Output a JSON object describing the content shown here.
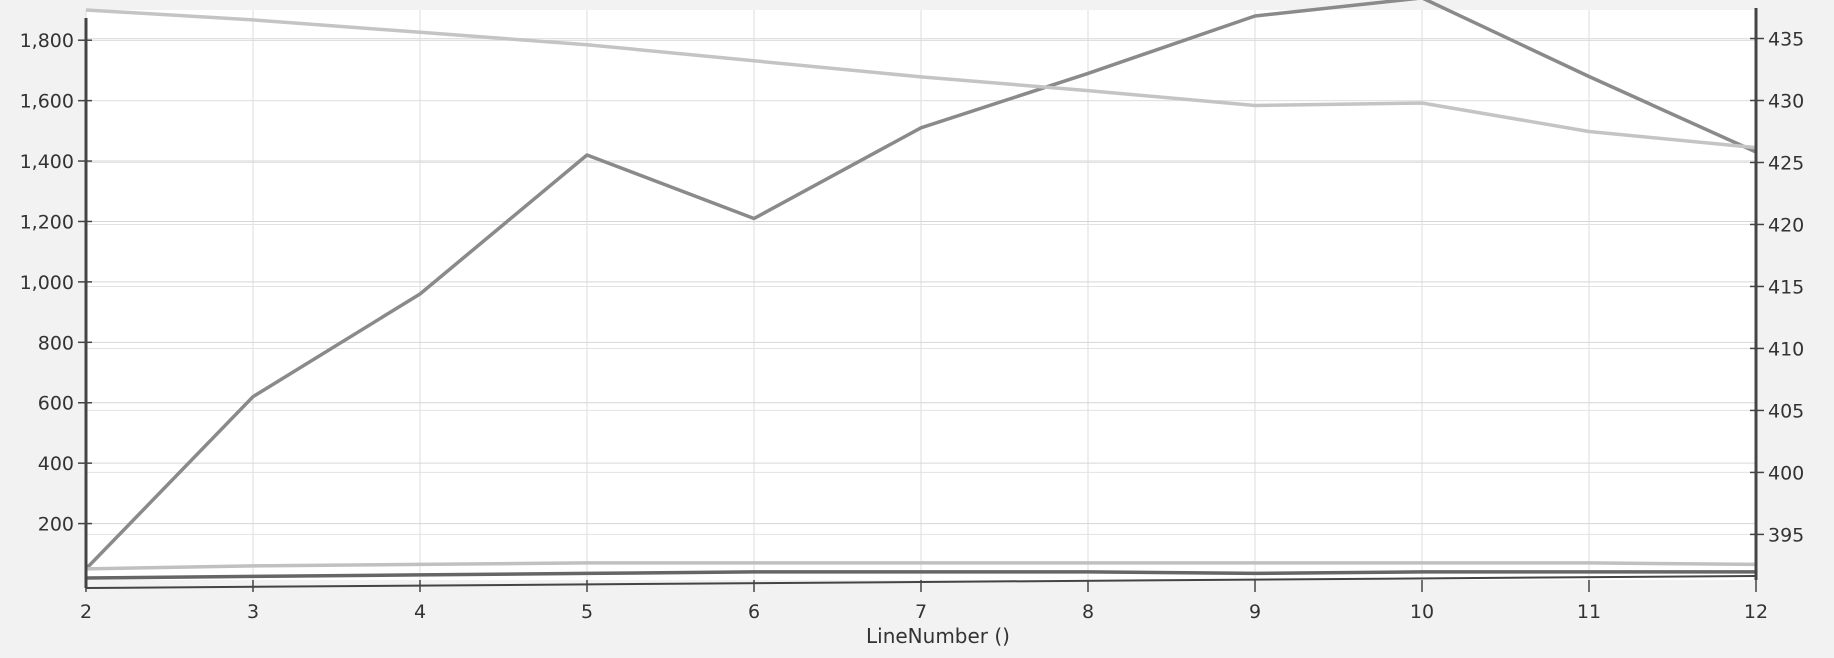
{
  "chart_data": {
    "type": "line",
    "title": "",
    "xlabel": "LineNumber ()",
    "ylabel_left": "",
    "ylabel_right": "",
    "x": [
      2,
      3,
      4,
      5,
      6,
      7,
      8,
      9,
      10,
      11,
      12
    ],
    "x_ticks": [
      "2",
      "3",
      "4",
      "5",
      "6",
      "7",
      "8",
      "9",
      "10",
      "11",
      "12"
    ],
    "xlim": [
      2,
      12
    ],
    "ylim_left": [
      0,
      1900
    ],
    "ylim_right": [
      391,
      437.3
    ],
    "y_ticks_left": [
      "200",
      "400",
      "600",
      "800",
      "1,000",
      "1,200",
      "1,400",
      "1,600",
      "1,800"
    ],
    "y_tick_values_left": [
      200,
      400,
      600,
      800,
      1000,
      1200,
      1400,
      1600,
      1800
    ],
    "y_ticks_right": [
      "395",
      "400",
      "405",
      "410",
      "415",
      "420",
      "425",
      "430",
      "435"
    ],
    "y_tick_values_right": [
      395,
      400,
      405,
      410,
      415,
      420,
      425,
      430,
      435
    ],
    "grid": true,
    "series": [
      {
        "axis": "left",
        "color": "#8a8a8a",
        "values": [
          50,
          620,
          960,
          1420,
          1210,
          1510,
          1690,
          1880,
          1940,
          1680,
          1430
        ]
      },
      {
        "axis": "right",
        "color": "#c4c4c4",
        "values": [
          437.3,
          436.5,
          435.5,
          434.5,
          433.2,
          431.9,
          430.8,
          429.6,
          429.8,
          427.5,
          426.2
        ]
      },
      {
        "axis": "left",
        "color": "#c0c0c0",
        "values": [
          50,
          60,
          65,
          70,
          70,
          70,
          70,
          70,
          70,
          70,
          65
        ]
      },
      {
        "axis": "left",
        "color": "#666666",
        "values": [
          20,
          25,
          30,
          35,
          40,
          40,
          40,
          35,
          40,
          40,
          40
        ]
      }
    ]
  }
}
